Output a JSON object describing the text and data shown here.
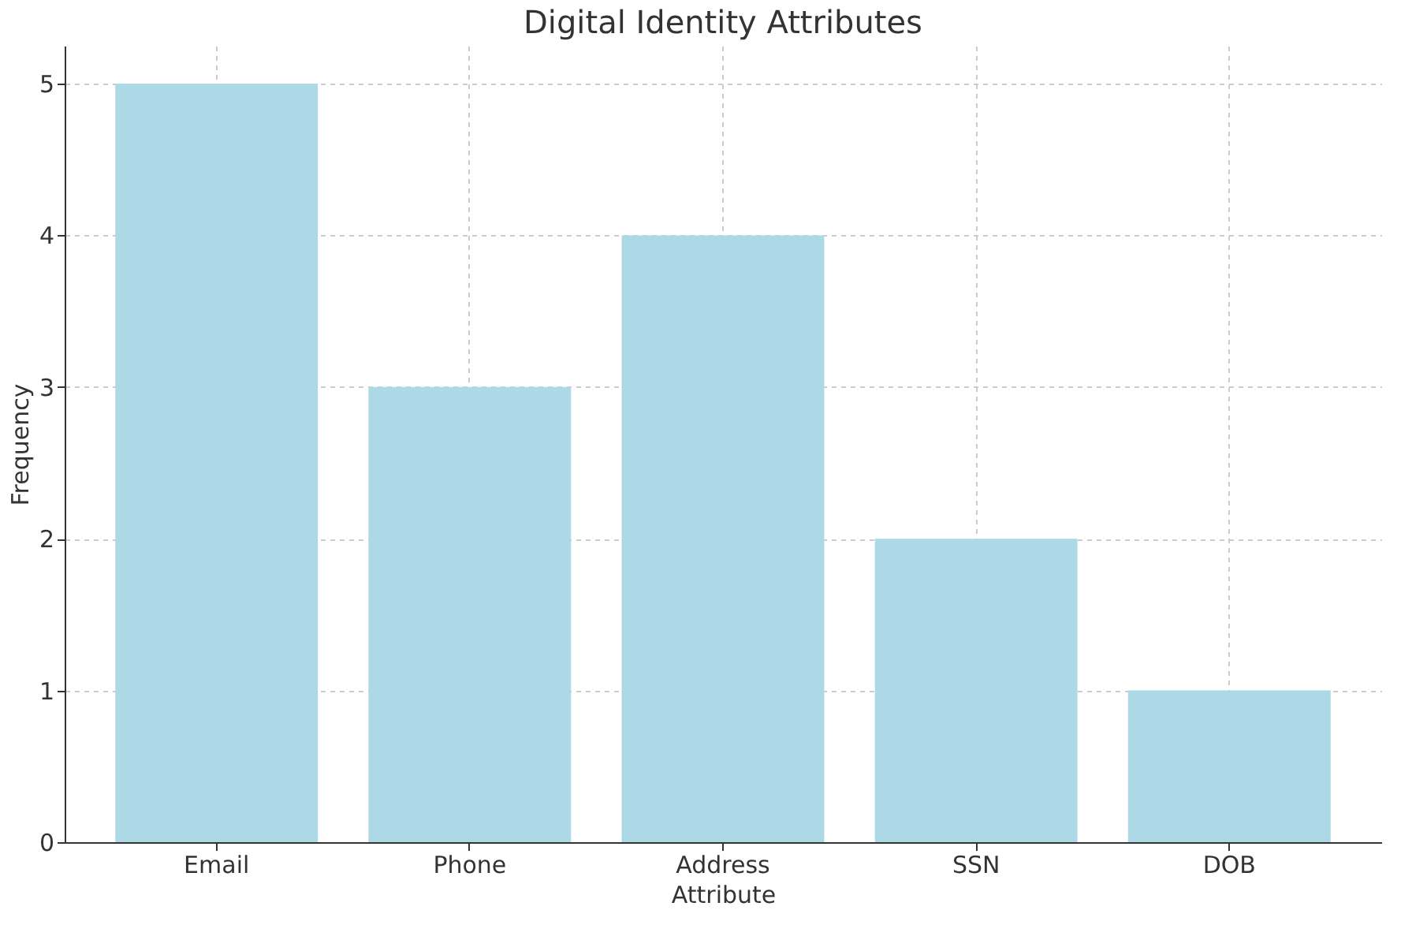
{
  "chart_data": {
    "type": "bar",
    "title": "Digital Identity Attributes",
    "xlabel": "Attribute",
    "ylabel": "Frequency",
    "categories": [
      "Email",
      "Phone",
      "Address",
      "SSN",
      "DOB"
    ],
    "values": [
      5,
      3,
      4,
      2,
      1
    ],
    "color": "#add8e6",
    "ylim": [
      0,
      5.25
    ],
    "yticks": [
      0,
      1,
      2,
      3,
      4,
      5
    ],
    "grid": true
  }
}
